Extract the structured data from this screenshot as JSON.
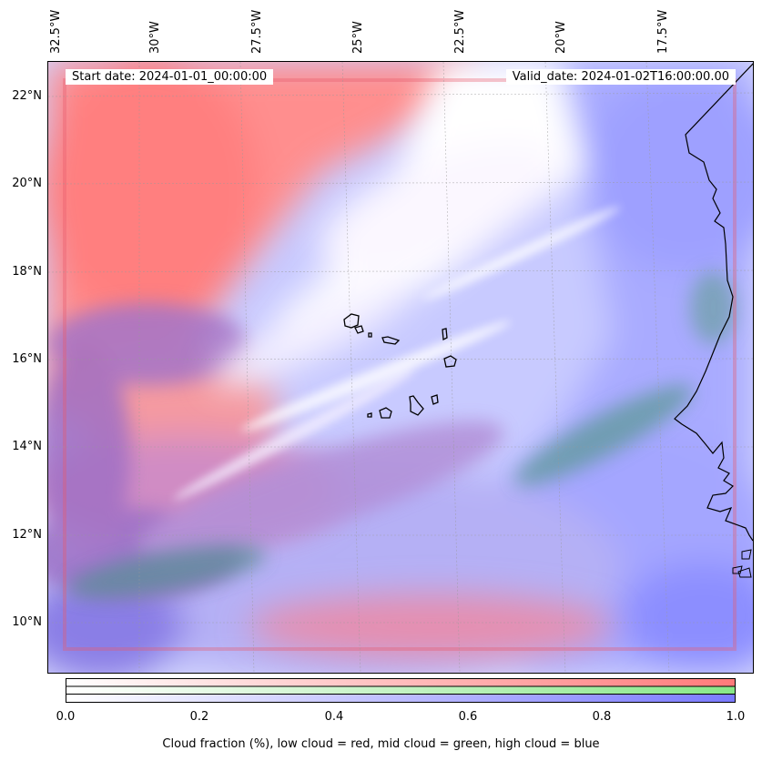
{
  "map": {
    "start_date": "Start date: 2024-01-01_00:00:00",
    "valid_date": "Valid_date: 2024-01-02T16:00:00.00",
    "lon_labels": [
      "32.5°W",
      "30°W",
      "27.5°W",
      "25°W",
      "22.5°W",
      "20°W",
      "17.5°W"
    ],
    "lat_labels": [
      "22°N",
      "20°N",
      "18°N",
      "16°N",
      "14°N",
      "12°N",
      "10°N"
    ],
    "colors": {
      "low_cloud": "#ff7a7a",
      "mid_cloud": "#88e888",
      "high_cloud": "#7a7aff",
      "coastline": "#000000",
      "gridline": "#b0b0b0"
    }
  },
  "colorbar": {
    "ticks": [
      "0.0",
      "0.2",
      "0.4",
      "0.6",
      "0.8",
      "1.0"
    ],
    "label": "Cloud fraction (%), low cloud = red, mid cloud = green, high cloud = blue"
  }
}
